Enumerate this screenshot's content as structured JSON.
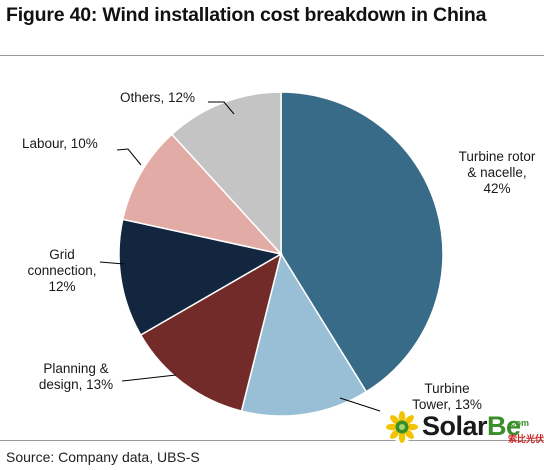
{
  "title": "Figure 40: Wind installation cost breakdown in China",
  "source": "Source: Company data, UBS-S",
  "watermark": {
    "name_part1": "Solar",
    "name_part2": "Be",
    "suffix": ".com",
    "chinese": "索比光伏网"
  },
  "chart_data": {
    "type": "pie",
    "title": "Wind installation cost breakdown in China",
    "slices": [
      {
        "name": "Turbine rotor & nacelle",
        "value": 42,
        "color": "#376b88",
        "label_lines": [
          "Turbine rotor",
          "& nacelle,",
          "42%"
        ]
      },
      {
        "name": "Turbine Tower",
        "value": 13,
        "color": "#98bfd5",
        "label_lines": [
          "Turbine",
          "Tower, 13%"
        ]
      },
      {
        "name": "Planning & design",
        "value": 13,
        "color": "#722b28",
        "label_lines": [
          "Planning &",
          "design, 13%"
        ]
      },
      {
        "name": "Grid connection",
        "value": 12,
        "color": "#13263f",
        "label_lines": [
          "Grid",
          "connection,",
          "12%"
        ]
      },
      {
        "name": "Labour",
        "value": 10,
        "color": "#e2aba6",
        "label_lines": [
          "Labour, 10%"
        ]
      },
      {
        "name": "Others",
        "value": 12,
        "color": "#c4c4c4",
        "label_lines": [
          "Others, 12%"
        ]
      }
    ]
  }
}
